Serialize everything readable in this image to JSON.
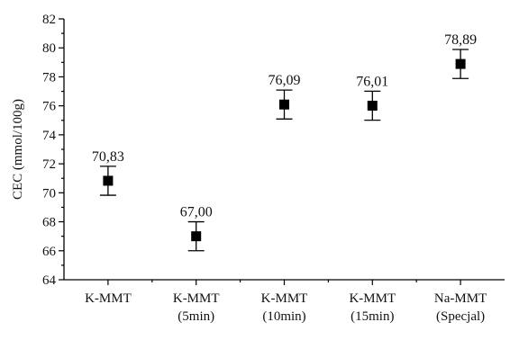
{
  "chart_data": {
    "type": "scatter",
    "title": "",
    "xlabel": "",
    "ylabel": "CEC (mmol/100g)",
    "ylim": [
      64,
      82
    ],
    "yticks": [
      64,
      66,
      68,
      70,
      72,
      74,
      76,
      78,
      80,
      82
    ],
    "grid": false,
    "categories": [
      [
        "K-MMT"
      ],
      [
        "K-MMT",
        "(5min)"
      ],
      [
        "K-MMT",
        "(10min)"
      ],
      [
        "K-MMT",
        "(15min)"
      ],
      [
        "Na-MMT",
        "(Specjal)"
      ]
    ],
    "values": [
      70.83,
      67.0,
      76.09,
      76.01,
      78.89
    ],
    "value_labels": [
      "70,83",
      "67,00",
      "76,09",
      "76,01",
      "78,89"
    ],
    "error": [
      1.0,
      1.0,
      1.0,
      1.0,
      1.0
    ],
    "marker": "square",
    "color": "#000000"
  }
}
